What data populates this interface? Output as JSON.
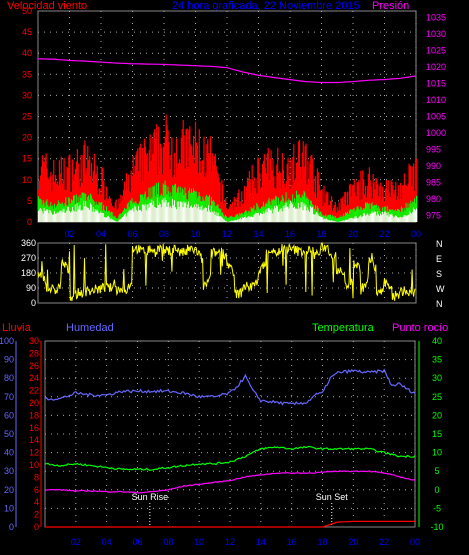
{
  "header": {
    "wind_label": "Velocidad viento",
    "title": "24 hora graficada, 22 Noviembre 2015",
    "pressure_label": "Presión"
  },
  "colors": {
    "wind_gust": "#ff0000",
    "wind_avg": "#00ff00",
    "wind_min": "#ffffff",
    "pressure": "#ff00ff",
    "direction": "#ffff00",
    "rain": "#ff0000",
    "humidity": "#6666ff",
    "temperature": "#00ff00",
    "dewpoint": "#ff00ff",
    "grid": "#aaaaaa",
    "text_blue": "#0000ff"
  },
  "chart_data": [
    {
      "type": "area",
      "name_ref": "wind-pressure",
      "x_ticks": [
        "02",
        "04",
        "06",
        "08",
        "10",
        "12",
        "14",
        "16",
        "18",
        "20",
        "22",
        "00"
      ],
      "y_left": {
        "label": "Velocidad viento",
        "ticks": [
          0,
          5,
          10,
          15,
          20,
          25,
          30,
          35,
          40,
          45,
          50
        ],
        "range": [
          0,
          50
        ]
      },
      "y_right": {
        "label": "Presión",
        "ticks": [
          975,
          980,
          985,
          990,
          995,
          1000,
          1005,
          1010,
          1015,
          1020,
          1025,
          1030,
          1035
        ],
        "range": [
          973,
          1037
        ]
      },
      "series": [
        {
          "name": "Presión",
          "color": "#ff00ff",
          "x": [
            0,
            1,
            2,
            3,
            4,
            5,
            6,
            7,
            8,
            9,
            10,
            11,
            12,
            13,
            14,
            15,
            16,
            17,
            18,
            19,
            20,
            21,
            22,
            23,
            24
          ],
          "values": [
            1022.5,
            1022.4,
            1022,
            1021.8,
            1021.5,
            1021.2,
            1021,
            1020.9,
            1020.8,
            1020.6,
            1020.4,
            1020.2,
            1019.8,
            1018.5,
            1017.5,
            1016.8,
            1016.2,
            1015.6,
            1015.3,
            1015.3,
            1015.6,
            1016,
            1016.2,
            1016.6,
            1017.3
          ]
        },
        {
          "name": "gust",
          "color": "#ff0000",
          "x": [
            0,
            1,
            2,
            3,
            4,
            5,
            6,
            7,
            8,
            9,
            10,
            11,
            12,
            13,
            14,
            15,
            16,
            17,
            18,
            19,
            20,
            21,
            22,
            23,
            24
          ],
          "values": [
            12,
            10,
            11,
            13,
            9,
            3,
            11,
            14,
            17,
            16,
            16,
            13,
            3,
            6,
            11,
            12,
            12,
            14,
            6,
            3,
            7,
            9,
            7,
            7,
            11
          ]
        },
        {
          "name": "avg",
          "color": "#00ff00",
          "x": [
            0,
            1,
            2,
            3,
            4,
            5,
            6,
            7,
            8,
            9,
            10,
            11,
            12,
            13,
            14,
            15,
            16,
            17,
            18,
            19,
            20,
            21,
            22,
            23,
            24
          ],
          "values": [
            5,
            4,
            5,
            6,
            4,
            1,
            5,
            7,
            8,
            7,
            7,
            5,
            1,
            2,
            4,
            5,
            6,
            6,
            2,
            1,
            3,
            4,
            3,
            3,
            5
          ]
        },
        {
          "name": "min",
          "color": "#ffffff",
          "x": [
            0,
            1,
            2,
            3,
            4,
            5,
            6,
            7,
            8,
            9,
            10,
            11,
            12,
            13,
            14,
            15,
            16,
            17,
            18,
            19,
            20,
            21,
            22,
            23,
            24
          ],
          "values": [
            3,
            2,
            3,
            4,
            2,
            0,
            3,
            4,
            5,
            4,
            4,
            3,
            0,
            1,
            2,
            3,
            4,
            4,
            1,
            0,
            1,
            2,
            2,
            1,
            3
          ]
        }
      ]
    },
    {
      "type": "line",
      "name_ref": "wind-direction",
      "x_ticks": [
        "02",
        "04",
        "06",
        "08",
        "10",
        "12",
        "14",
        "16",
        "18",
        "20",
        "22",
        "00"
      ],
      "y_left": {
        "ticks": [
          0,
          90,
          180,
          270,
          360
        ],
        "range": [
          0,
          360
        ]
      },
      "y_right": {
        "ticks": [
          "N",
          "W",
          "S",
          "E",
          "N"
        ]
      },
      "series": [
        {
          "name": "dirección",
          "color": "#ffff00",
          "x": [
            0,
            0.5,
            1,
            1.5,
            2,
            2.5,
            3,
            3.5,
            4,
            4.5,
            5,
            5.5,
            6,
            6.5,
            7,
            7.5,
            8,
            8.5,
            9,
            9.5,
            10,
            10.5,
            11,
            11.5,
            12,
            12.5,
            13,
            13.5,
            14,
            14.5,
            15,
            15.5,
            16,
            16.5,
            17,
            17.5,
            18,
            18.5,
            19,
            19.5,
            20,
            20.5,
            21,
            21.5,
            22,
            22.5,
            23,
            23.5,
            24
          ],
          "values": [
            180,
            90,
            60,
            250,
            40,
            60,
            70,
            80,
            90,
            90,
            80,
            60,
            330,
            310,
            320,
            330,
            310,
            330,
            300,
            320,
            320,
            90,
            300,
            310,
            240,
            50,
            100,
            90,
            200,
            320,
            300,
            330,
            320,
            310,
            320,
            290,
            340,
            300,
            200,
            100,
            250,
            80,
            260,
            60,
            120,
            40,
            70,
            60,
            50
          ]
        }
      ]
    },
    {
      "type": "line",
      "name_ref": "hum-temp",
      "legend": [
        "Lluvia",
        "Humedad",
        "Temperatura",
        "Punto rocío"
      ],
      "x_ticks": [
        "02",
        "04",
        "06",
        "08",
        "10",
        "12",
        "14",
        "16",
        "18",
        "20",
        "22",
        "00"
      ],
      "axis_rain": {
        "label": "Lluvia",
        "ticks": [
          0,
          2,
          4,
          6,
          8,
          10,
          12,
          14,
          16,
          18,
          20,
          22,
          24,
          26,
          28,
          30
        ],
        "range": [
          0,
          30
        ]
      },
      "axis_humidity": {
        "label": "Humedad",
        "ticks": [
          0,
          10,
          20,
          30,
          40,
          50,
          60,
          70,
          80,
          90,
          100
        ],
        "range": [
          0,
          100
        ]
      },
      "axis_temp": {
        "label": "Temperatura",
        "ticks": [
          -10,
          -5,
          0,
          5,
          10,
          15,
          20,
          25,
          30,
          35,
          40
        ],
        "range": [
          -10,
          40
        ]
      },
      "annotations": [
        {
          "label": "Sun Rise",
          "x": 6.8
        },
        {
          "label": "Sun Set",
          "x": 18.6
        }
      ],
      "series": [
        {
          "name": "Humedad",
          "color": "#6666ff",
          "x": [
            0,
            1,
            2,
            3,
            4,
            5,
            6,
            7,
            8,
            9,
            10,
            11,
            12,
            12.5,
            13,
            13.5,
            14,
            15,
            16,
            17,
            17.5,
            18,
            18.5,
            19,
            20,
            21,
            22,
            22.5,
            23,
            23.5,
            24
          ],
          "values": [
            69,
            69,
            72,
            71,
            71,
            73,
            73,
            73,
            73,
            72,
            70,
            70,
            72,
            76,
            81,
            73,
            68,
            67,
            66,
            67,
            71,
            72,
            80,
            83,
            84,
            83,
            84,
            76,
            77,
            74,
            72
          ]
        },
        {
          "name": "Temperatura",
          "color": "#00ff00",
          "x": [
            0,
            1,
            2,
            3,
            4,
            5,
            6,
            7,
            8,
            9,
            10,
            11,
            12,
            13,
            14,
            15,
            16,
            17,
            18,
            19,
            20,
            21,
            22,
            23,
            24
          ],
          "values": [
            7,
            6.5,
            7,
            6.5,
            6,
            5.5,
            5.5,
            5.5,
            6,
            6.5,
            7,
            7,
            7.5,
            9,
            11,
            11.5,
            11,
            11.5,
            11,
            11,
            11,
            11,
            10,
            9,
            9
          ]
        },
        {
          "name": "Punto rocío",
          "color": "#ff00ff",
          "x": [
            0,
            1,
            2,
            3,
            4,
            5,
            6,
            7,
            8,
            9,
            10,
            11,
            12,
            13,
            14,
            15,
            16,
            17,
            18,
            19,
            20,
            21,
            22,
            23,
            24
          ],
          "values": [
            0,
            0,
            -0.3,
            -0.3,
            -0.5,
            -0.5,
            -0.8,
            -0.5,
            0,
            1,
            1.5,
            2,
            2.5,
            3.5,
            4,
            4.5,
            4.5,
            4.5,
            4.7,
            5,
            5,
            5,
            4.5,
            3.5,
            2.5
          ]
        },
        {
          "name": "Lluvia",
          "color": "#ff0000",
          "x": [
            0,
            6,
            12,
            18,
            19,
            20,
            21,
            22,
            23,
            24
          ],
          "values": [
            0,
            0,
            0,
            0,
            0.8,
            0.9,
            0.9,
            0.9,
            0.9,
            0.9
          ]
        }
      ]
    }
  ]
}
